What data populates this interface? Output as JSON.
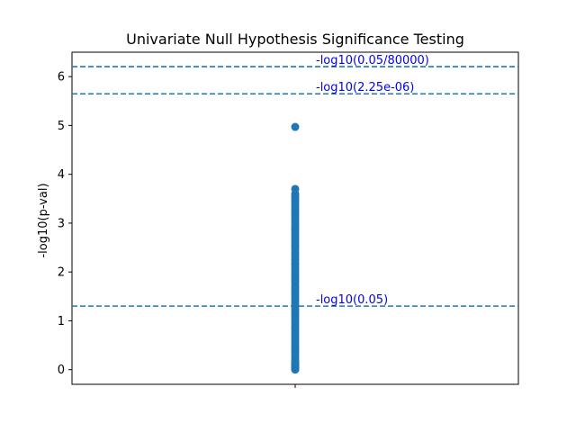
{
  "chart_data": {
    "type": "scatter",
    "title": "Univariate Null Hypothesis Significance Testing",
    "xlabel": "",
    "ylabel": "-log10(p-val)",
    "ylim": [
      -0.3,
      6.5
    ],
    "xlim": [
      -1,
      1
    ],
    "yticks": [
      0,
      1,
      2,
      3,
      4,
      5,
      6
    ],
    "xticks": [
      0
    ],
    "grid": false,
    "legend": "none",
    "series": [
      {
        "color": "#1f77b4",
        "x": [
          0,
          0,
          0,
          0,
          0,
          0,
          0,
          0,
          0,
          0,
          0,
          0,
          0,
          0,
          0,
          0,
          0,
          0,
          0,
          0,
          0,
          0,
          0,
          0,
          0,
          0,
          0,
          0,
          0,
          0,
          0,
          0,
          0,
          0,
          0,
          0,
          0,
          0,
          0,
          0,
          0,
          0,
          0,
          0,
          0,
          0,
          0,
          0,
          0,
          0,
          0,
          0,
          0,
          0,
          0,
          0,
          0,
          0,
          0,
          0,
          0,
          0,
          0,
          0,
          0,
          0,
          0,
          0,
          0,
          0,
          0,
          0,
          0,
          0,
          0,
          0,
          0,
          0,
          0,
          0,
          0,
          0,
          0,
          0,
          0,
          0
        ],
        "y": [
          0,
          0.05,
          0.1,
          0.15,
          0.2,
          0.25,
          0.3,
          0.35,
          0.4,
          0.45,
          0.5,
          0.55,
          0.6,
          0.65,
          0.7,
          0.75,
          0.8,
          0.85,
          0.9,
          0.95,
          1.0,
          1.05,
          1.1,
          1.15,
          1.2,
          1.25,
          1.3,
          1.35,
          1.4,
          1.45,
          1.5,
          1.55,
          1.6,
          1.65,
          1.7,
          1.75,
          1.8,
          1.85,
          1.9,
          1.95,
          2.0,
          2.05,
          2.1,
          2.15,
          2.2,
          2.25,
          2.3,
          2.35,
          2.4,
          2.45,
          2.5,
          2.55,
          2.6,
          2.65,
          2.7,
          2.75,
          2.8,
          2.85,
          2.9,
          2.95,
          3.0,
          3.05,
          3.1,
          3.15,
          3.2,
          3.25,
          3.3,
          3.35,
          3.4,
          3.45,
          3.5,
          3.55,
          3.6,
          3.7,
          4.97,
          0.02,
          0.07,
          0.12,
          0.03,
          0.08,
          0.04,
          0.09,
          0.01,
          0.06,
          0.11,
          0.13
        ]
      }
    ],
    "hlines": [
      {
        "y": 6.2041,
        "label": "-log10(0.05/80000)",
        "color": "#1f77b4",
        "label_color": "#0000ff"
      },
      {
        "y": 5.6478,
        "label": "-log10(2.25e-06)",
        "color": "#1f77b4",
        "label_color": "#0000ff"
      },
      {
        "y": 1.301,
        "label": "-log10(0.05)",
        "color": "#1f77b4",
        "label_color": "#0000ff"
      }
    ]
  }
}
